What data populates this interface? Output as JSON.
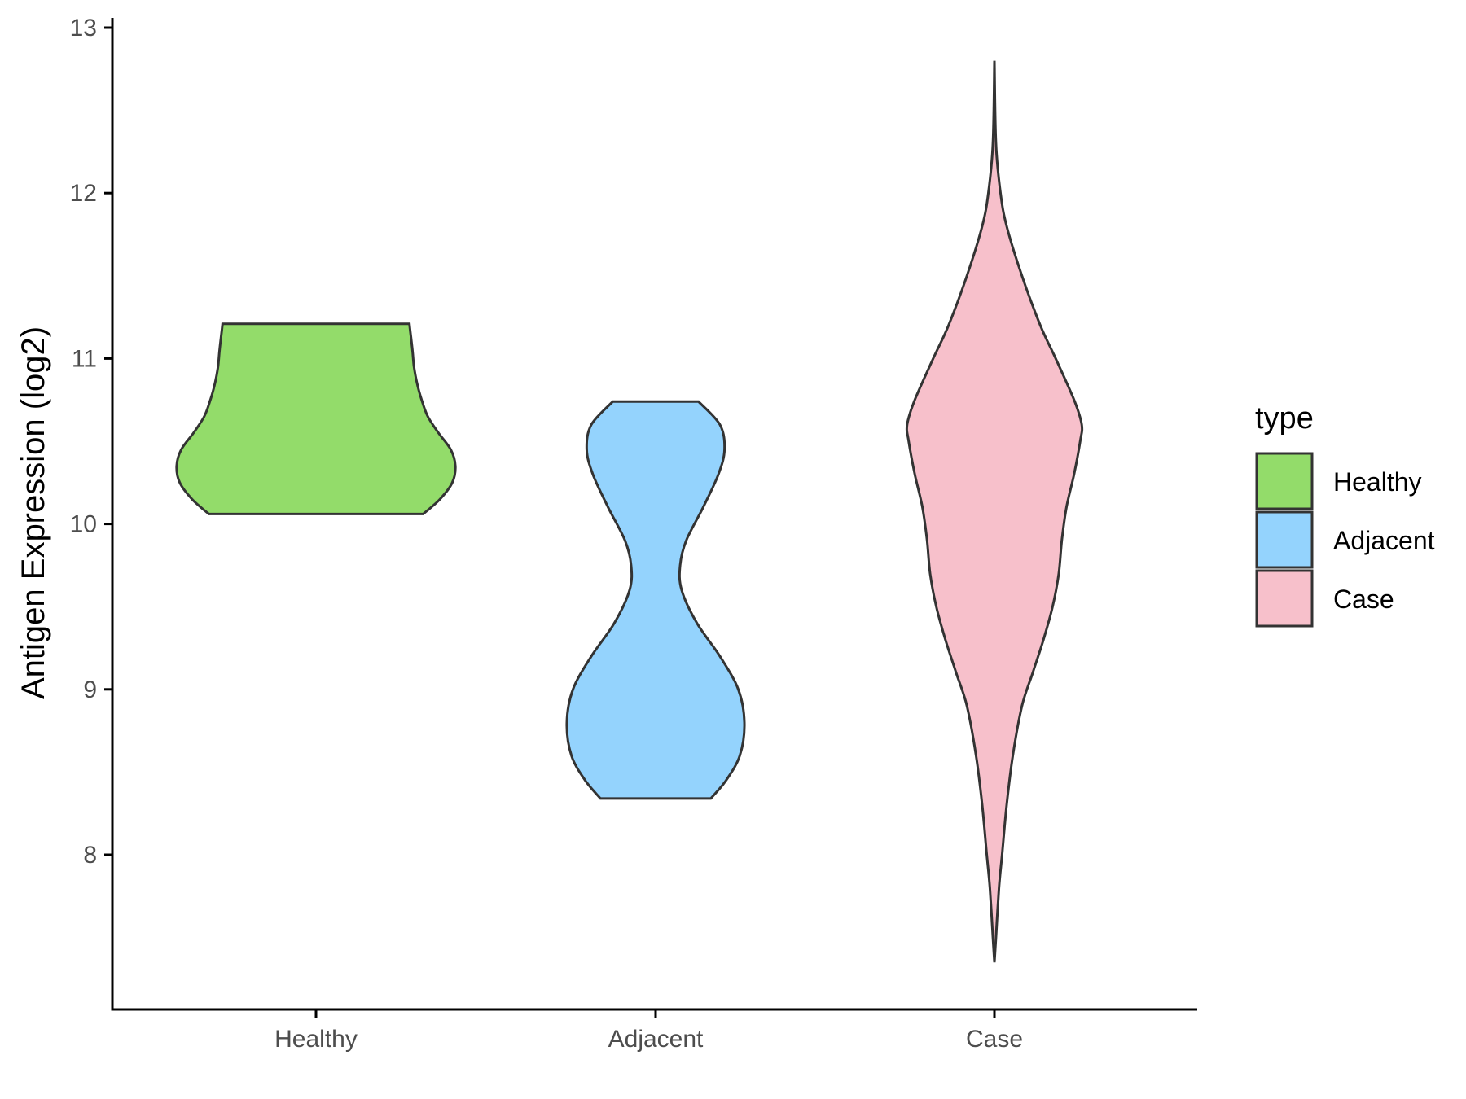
{
  "chart_data": {
    "type": "violin",
    "title": "",
    "xlabel": "",
    "ylabel": "Antigen Expression (log2)",
    "ylim": [
      7.1,
      13.1
    ],
    "yticks": [
      8,
      9,
      10,
      11,
      12,
      13
    ],
    "categories": [
      "Healthy",
      "Adjacent",
      "Case"
    ],
    "legend": {
      "title": "type",
      "position": "right",
      "entries": [
        "Healthy",
        "Adjacent",
        "Case"
      ]
    },
    "series": [
      {
        "name": "Healthy",
        "color": "#93dc6a",
        "min": 10.06,
        "max": 11.21,
        "profile": [
          [
            10.06,
            0.7
          ],
          [
            10.15,
            0.81
          ],
          [
            10.25,
            0.89
          ],
          [
            10.35,
            0.91
          ],
          [
            10.45,
            0.88
          ],
          [
            10.55,
            0.8
          ],
          [
            10.65,
            0.73
          ],
          [
            10.75,
            0.69
          ],
          [
            10.85,
            0.66
          ],
          [
            10.95,
            0.64
          ],
          [
            11.05,
            0.63
          ],
          [
            11.13,
            0.62
          ],
          [
            11.21,
            0.61
          ]
        ]
      },
      {
        "name": "Adjacent",
        "color": "#94d3fd",
        "min": 8.34,
        "max": 10.74,
        "profile": [
          [
            8.34,
            0.36
          ],
          [
            8.45,
            0.46
          ],
          [
            8.6,
            0.55
          ],
          [
            8.8,
            0.58
          ],
          [
            9.0,
            0.54
          ],
          [
            9.2,
            0.42
          ],
          [
            9.4,
            0.27
          ],
          [
            9.6,
            0.17
          ],
          [
            9.75,
            0.16
          ],
          [
            9.9,
            0.2
          ],
          [
            10.1,
            0.31
          ],
          [
            10.3,
            0.41
          ],
          [
            10.45,
            0.45
          ],
          [
            10.6,
            0.42
          ],
          [
            10.74,
            0.28
          ]
        ]
      },
      {
        "name": "Case",
        "color": "#f7c0cb",
        "min": 7.35,
        "max": 12.8,
        "profile": [
          [
            7.35,
            0.0
          ],
          [
            7.5,
            0.01
          ],
          [
            7.8,
            0.03
          ],
          [
            8.0,
            0.05
          ],
          [
            8.3,
            0.08
          ],
          [
            8.6,
            0.12
          ],
          [
            8.9,
            0.18
          ],
          [
            9.1,
            0.25
          ],
          [
            9.3,
            0.32
          ],
          [
            9.5,
            0.38
          ],
          [
            9.7,
            0.42
          ],
          [
            9.9,
            0.44
          ],
          [
            10.1,
            0.47
          ],
          [
            10.3,
            0.52
          ],
          [
            10.5,
            0.56
          ],
          [
            10.6,
            0.57
          ],
          [
            10.75,
            0.52
          ],
          [
            11.0,
            0.4
          ],
          [
            11.2,
            0.3
          ],
          [
            11.5,
            0.18
          ],
          [
            11.8,
            0.08
          ],
          [
            12.0,
            0.04
          ],
          [
            12.3,
            0.01
          ],
          [
            12.8,
            0.0
          ]
        ]
      }
    ]
  }
}
